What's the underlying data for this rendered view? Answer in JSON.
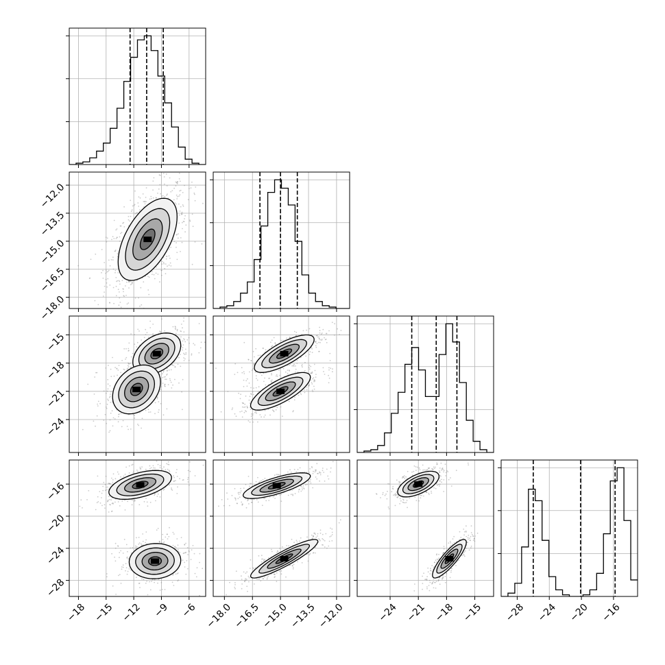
{
  "chart_data": {
    "type": "corner",
    "title": "",
    "grid": true,
    "dims": [
      {
        "label": "",
        "range": [
          -19.0,
          -4.2
        ],
        "ticks": [
          -18,
          -15,
          -12,
          -9,
          -6
        ],
        "tick_labels": [
          "−18",
          "−15",
          "−12",
          "−9",
          "−6"
        ],
        "quantiles": [
          -12.4,
          -10.6,
          -8.8
        ]
      },
      {
        "label": "",
        "range": [
          -18.6,
          -11.3
        ],
        "ticks": [
          -18.0,
          -16.5,
          -15.0,
          -13.5,
          -12.0
        ],
        "tick_labels": [
          "−18.0",
          "−16.5",
          "−15.0",
          "−13.5",
          "−12.0"
        ],
        "quantiles": [
          -16.1,
          -15.0,
          -14.1
        ]
      },
      {
        "label": "",
        "range": [
          -27.5,
          -13.0
        ],
        "ticks": [
          -24,
          -21,
          -18,
          -15
        ],
        "tick_labels": [
          "−24",
          "−21",
          "−18",
          "−15"
        ],
        "quantiles": [
          -21.7,
          -19.1,
          -16.9
        ]
      },
      {
        "label": "",
        "range": [
          -30.0,
          -13.0
        ],
        "ticks": [
          -28,
          -24,
          -20,
          -16
        ],
        "tick_labels": [
          "−28",
          "−24",
          "−20",
          "−16"
        ],
        "quantiles": [
          -26.0,
          -20.1,
          -15.8
        ]
      }
    ],
    "histograms": [
      {
        "bin_edges": [
          -19.0,
          -18.26,
          -17.52,
          -16.78,
          -16.04,
          -15.3,
          -14.56,
          -13.82,
          -13.08,
          -12.34,
          -11.6,
          -10.86,
          -10.12,
          -9.38,
          -8.64,
          -7.9,
          -7.16,
          -6.42,
          -5.68,
          -4.94,
          -4.2
        ],
        "counts": [
          0,
          1,
          2,
          5,
          10,
          16,
          27,
          42,
          62,
          80,
          93,
          96,
          85,
          66,
          46,
          28,
          13,
          4,
          1,
          0
        ]
      },
      {
        "bin_edges": [
          -18.6,
          -18.235,
          -17.87,
          -17.505,
          -17.14,
          -16.775,
          -16.41,
          -16.045,
          -15.68,
          -15.315,
          -14.95,
          -14.585,
          -14.22,
          -13.855,
          -13.49,
          -13.125,
          -12.76,
          -12.395,
          -12.03,
          -11.665,
          -11.3
        ],
        "counts": [
          0,
          1,
          2,
          5,
          11,
          19,
          35,
          59,
          83,
          92,
          86,
          74,
          48,
          24,
          11,
          5,
          2,
          1,
          0,
          0
        ]
      },
      {
        "bin_edges": [
          -27.5,
          -26.775,
          -26.05,
          -25.325,
          -24.6,
          -23.875,
          -23.15,
          -22.425,
          -21.7,
          -20.975,
          -20.25,
          -19.525,
          -18.8,
          -18.075,
          -17.35,
          -16.625,
          -15.9,
          -15.175,
          -14.45,
          -13.725,
          -13.0
        ],
        "counts": [
          0,
          1,
          2,
          5,
          14,
          28,
          43,
          63,
          75,
          59,
          40,
          40,
          70,
          92,
          79,
          50,
          23,
          8,
          2,
          0
        ]
      },
      {
        "bin_edges": [
          -30.0,
          -29.15,
          -28.3,
          -27.45,
          -26.6,
          -25.75,
          -24.9,
          -24.05,
          -23.2,
          -22.35,
          -21.5,
          -20.65,
          -19.8,
          -18.95,
          -18.1,
          -17.25,
          -16.4,
          -15.55,
          -14.7,
          -13.85,
          -13.0
        ],
        "counts": [
          0,
          2,
          8,
          30,
          65,
          58,
          34,
          12,
          4,
          1,
          0,
          0,
          1,
          4,
          14,
          38,
          70,
          78,
          46,
          10
        ]
      }
    ],
    "density_panels": [
      {
        "x_dim": 0,
        "y_dim": 1,
        "modes": [
          {
            "cx": -10.5,
            "cy": -14.9,
            "sx": 1.6,
            "sy": 1.1,
            "rho": 0.55,
            "weight": 1.0
          }
        ]
      },
      {
        "x_dim": 0,
        "y_dim": 2,
        "modes": [
          {
            "cx": -9.5,
            "cy": -17.0,
            "sx": 1.3,
            "sy": 1.1,
            "rho": 0.4,
            "weight": 0.5
          },
          {
            "cx": -11.7,
            "cy": -20.8,
            "sx": 1.3,
            "sy": 1.3,
            "rho": 0.3,
            "weight": 0.5
          }
        ]
      },
      {
        "x_dim": 1,
        "y_dim": 2,
        "modes": [
          {
            "cx": -14.8,
            "cy": -17.0,
            "sx": 0.8,
            "sy": 1.0,
            "rho": 0.75,
            "weight": 0.5
          },
          {
            "cx": -15.0,
            "cy": -21.0,
            "sx": 0.8,
            "sy": 1.0,
            "rho": 0.75,
            "weight": 0.5
          }
        ]
      },
      {
        "x_dim": 0,
        "y_dim": 3,
        "modes": [
          {
            "cx": -11.3,
            "cy": -16.1,
            "sx": 1.7,
            "sy": 0.9,
            "rho": 0.5,
            "weight": 0.5
          },
          {
            "cx": -9.7,
            "cy": -25.6,
            "sx": 1.4,
            "sy": 1.1,
            "rho": 0.05,
            "weight": 0.5
          }
        ]
      },
      {
        "x_dim": 1,
        "y_dim": 3,
        "modes": [
          {
            "cx": -15.2,
            "cy": -16.2,
            "sx": 0.9,
            "sy": 0.8,
            "rho": 0.75,
            "weight": 0.5
          },
          {
            "cx": -14.8,
            "cy": -25.3,
            "sx": 0.9,
            "sy": 1.2,
            "rho": 0.9,
            "weight": 0.5
          }
        ]
      },
      {
        "x_dim": 2,
        "y_dim": 3,
        "modes": [
          {
            "cx": -21.0,
            "cy": -16.0,
            "sx": 1.1,
            "sy": 0.8,
            "rho": 0.6,
            "weight": 0.5
          },
          {
            "cx": -17.7,
            "cy": -25.3,
            "sx": 0.9,
            "sy": 1.2,
            "rho": 0.85,
            "weight": 0.5
          }
        ]
      }
    ]
  },
  "colors": {
    "line": "#000000",
    "grid": "#b0b0b0",
    "panel_border": "#000000",
    "scatter": "#8a8a8a"
  }
}
